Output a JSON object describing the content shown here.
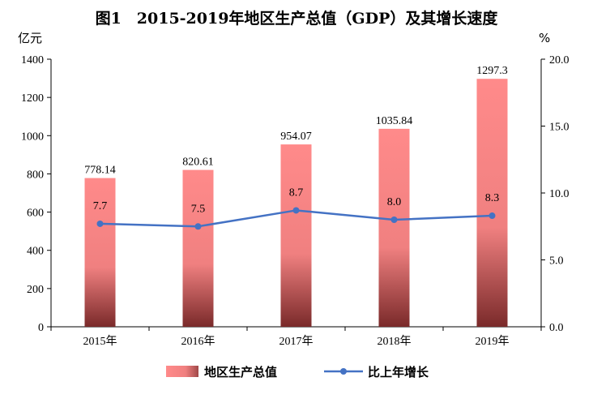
{
  "chart_data": {
    "type": "bar",
    "title": "图1　2015-2019年地区生产总值（GDP）及其增长速度",
    "categories": [
      "2015年",
      "2016年",
      "2017年",
      "2018年",
      "2019年"
    ],
    "series": [
      {
        "name": "地区生产总值",
        "type": "bar",
        "axis": "left",
        "values": [
          778.14,
          820.61,
          954.07,
          1035.84,
          1297.3
        ],
        "labels": [
          "778.14",
          "820.61",
          "954.07",
          "1035.84",
          "1297.3"
        ]
      },
      {
        "name": "比上年增长",
        "type": "line",
        "axis": "right",
        "values": [
          7.7,
          7.5,
          8.7,
          8.0,
          8.3
        ],
        "labels": [
          "7.7",
          "7.5",
          "8.7",
          "8.0",
          "8.3"
        ]
      }
    ],
    "ylabel": "亿元",
    "ylim": [
      0,
      1400
    ],
    "yticks": [
      "0",
      "200",
      "400",
      "600",
      "800",
      "1000",
      "1200",
      "1400"
    ],
    "y2label": "%",
    "y2lim": [
      0,
      20
    ],
    "y2ticks": [
      "0.0",
      "5.0",
      "10.0",
      "15.0",
      "20.0"
    ],
    "grid": false,
    "legend_position": "bottom",
    "colors": {
      "bar_top": "#ff8a8a",
      "bar_bottom": "#7a2a2a",
      "line": "#4472c4"
    }
  }
}
